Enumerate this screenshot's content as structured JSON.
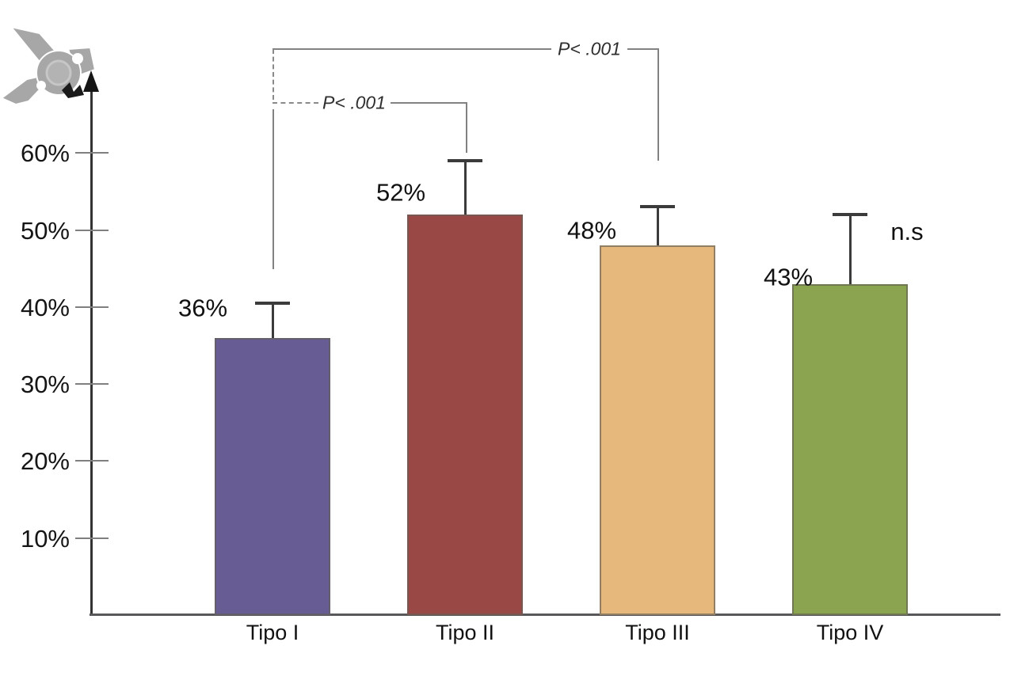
{
  "chart_data": {
    "type": "bar",
    "title": "",
    "xlabel": "",
    "ylabel": "",
    "categories": [
      "Tipo I",
      "Tipo II",
      "Tipo III",
      "Tipo IV"
    ],
    "values": [
      36,
      52,
      48,
      43
    ],
    "value_labels": [
      "36%",
      "52%",
      "48%",
      "43%"
    ],
    "error_whisker_top_percent": [
      40.5,
      59,
      53,
      52
    ],
    "yticks": [
      "60%",
      "50%",
      "40%",
      "30%",
      "20%",
      "10%"
    ],
    "ytick_values": [
      60,
      50,
      40,
      30,
      20,
      10
    ],
    "ylim": [
      0,
      68
    ],
    "grid": false,
    "legend": false,
    "bar_colors": [
      "#675D94",
      "#9A4845",
      "#E7B87B",
      "#8BA44F"
    ],
    "annotations": {
      "brackets": [
        {
          "from": "Tipo I",
          "to": "Tipo II",
          "label": "P< .001"
        },
        {
          "from": "Tipo I",
          "to": "Tipo III",
          "label": "P< .001"
        }
      ],
      "ns_label": "n.s"
    }
  },
  "icons": {
    "logo": "gray-satellite-gear-logo",
    "y_axis_arrow": "up-arrowhead"
  }
}
